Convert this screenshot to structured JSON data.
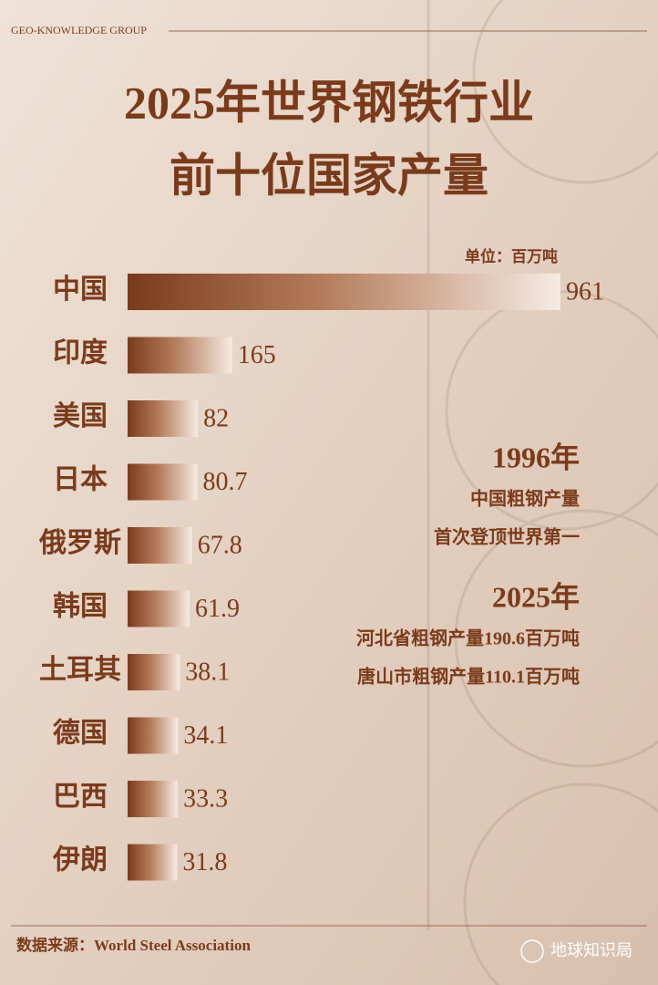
{
  "chart_data": {
    "type": "bar",
    "orientation": "horizontal",
    "header": "GEO-KNOWLEDGE GROUP",
    "title": [
      "2025年世界钢铁行业",
      "前十位国家产量"
    ],
    "unit": "单位：百万吨",
    "categories": [
      "中国",
      "印度",
      "美国",
      "日本",
      "俄罗斯",
      "韩国",
      "土耳其",
      "德国",
      "巴西",
      "伊朗"
    ],
    "values": [
      961,
      165,
      82,
      80.7,
      67.8,
      61.9,
      38.1,
      34.1,
      33.3,
      31.8
    ],
    "color": "#7a3b1d",
    "annotations": [
      {
        "title": "1996年",
        "lines": [
          "中国粗钢产量",
          "首次登顶世界第一"
        ]
      },
      {
        "title": "2025年",
        "lines": [
          "河北省粗钢产量190.6百万吨",
          "唐山市粗钢产量110.1百万吨"
        ]
      }
    ],
    "source": "数据来源：World Steel Association",
    "brand": "地球知识局"
  }
}
